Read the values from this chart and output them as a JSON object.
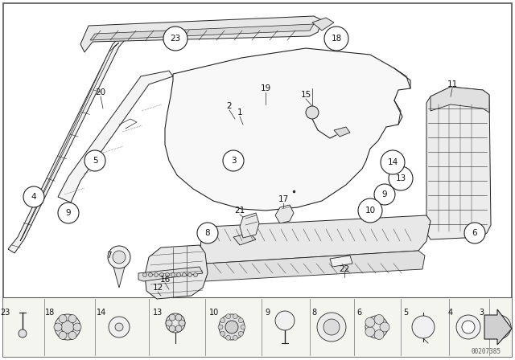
{
  "bg_color": "#ffffff",
  "border_color": "#555555",
  "line_color": "#222222",
  "watermark": "00207385",
  "figsize": [
    6.4,
    4.48
  ],
  "dpi": 100
}
